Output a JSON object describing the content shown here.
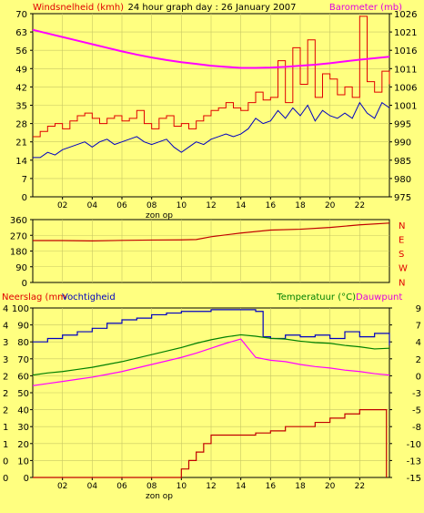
{
  "header": {
    "left_label": "Windsnelheid (kmh)",
    "center_title": "24 hour graph day : 26 January 2007",
    "right_label": "Barometer (mb)"
  },
  "colors": {
    "background": "#ffff80",
    "frame": "#000000",
    "grid": "#c8c864",
    "wind": "#e00000",
    "wind_avg": "#0000c0",
    "baro": "#ff00ff",
    "direction": "#c00000",
    "humidity": "#0000c0",
    "temperature": "#008000",
    "dewpoint": "#ff00ff",
    "rain": "#c00000",
    "label_red": "#e00000",
    "label_magenta": "#e000e0",
    "label_green": "#008000"
  },
  "chart_data": [
    {
      "type": "line",
      "title": "24 hour graph day : 26 January 2007",
      "xlabel": "zon op",
      "x_ticks": [
        "02",
        "04",
        "06",
        "08",
        "10",
        "12",
        "14",
        "16",
        "18",
        "20",
        "22"
      ],
      "xlim": [
        0,
        24
      ],
      "left_axis": {
        "label": "Windsnelheid (kmh)",
        "ticks": [
          "0",
          "7",
          "14",
          "21",
          "28",
          "35",
          "42",
          "49",
          "56",
          "63",
          "70"
        ],
        "ylim": [
          0,
          70
        ]
      },
      "right_axis": {
        "label": "Barometer (mb)",
        "ticks": [
          "975",
          "980",
          "985",
          "990",
          "995",
          "1001",
          "1006",
          "1011",
          "1016",
          "1021",
          "1026"
        ],
        "ylim": [
          975,
          1026
        ]
      },
      "series": [
        {
          "key": "gust",
          "axis": "left",
          "style": "step",
          "color": "#e00000",
          "points": [
            [
              0.0,
              23
            ],
            [
              0.5,
              25
            ],
            [
              1.0,
              27
            ],
            [
              1.5,
              28
            ],
            [
              2.0,
              26
            ],
            [
              2.5,
              29
            ],
            [
              3.0,
              31
            ],
            [
              3.5,
              32
            ],
            [
              4.0,
              30
            ],
            [
              4.5,
              28
            ],
            [
              5.0,
              30
            ],
            [
              5.5,
              31
            ],
            [
              6.0,
              29
            ],
            [
              6.5,
              30
            ],
            [
              7.0,
              33
            ],
            [
              7.5,
              28
            ],
            [
              8.0,
              26
            ],
            [
              8.5,
              30
            ],
            [
              9.0,
              31
            ],
            [
              9.5,
              27
            ],
            [
              10.0,
              28
            ],
            [
              10.5,
              26
            ],
            [
              11.0,
              29
            ],
            [
              11.5,
              31
            ],
            [
              12.0,
              33
            ],
            [
              12.5,
              34
            ],
            [
              13.0,
              36
            ],
            [
              13.5,
              34
            ],
            [
              14.0,
              33
            ],
            [
              14.5,
              36
            ],
            [
              15.0,
              40
            ],
            [
              15.5,
              37
            ],
            [
              16.0,
              38
            ],
            [
              16.5,
              52
            ],
            [
              17.0,
              36
            ],
            [
              17.5,
              57
            ],
            [
              18.0,
              43
            ],
            [
              18.5,
              60
            ],
            [
              19.0,
              38
            ],
            [
              19.5,
              47
            ],
            [
              20.0,
              45
            ],
            [
              20.5,
              39
            ],
            [
              21.0,
              42
            ],
            [
              21.5,
              38
            ],
            [
              22.0,
              69
            ],
            [
              22.5,
              44
            ],
            [
              23.0,
              40
            ],
            [
              23.5,
              48
            ],
            [
              24.0,
              43
            ]
          ]
        },
        {
          "key": "wind_avg",
          "axis": "left",
          "style": "line",
          "color": "#0000c0",
          "points": [
            [
              0.0,
              15
            ],
            [
              0.5,
              15
            ],
            [
              1.0,
              17
            ],
            [
              1.5,
              16
            ],
            [
              2.0,
              18
            ],
            [
              2.5,
              19
            ],
            [
              3.0,
              20
            ],
            [
              3.5,
              21
            ],
            [
              4.0,
              19
            ],
            [
              4.5,
              21
            ],
            [
              5.0,
              22
            ],
            [
              5.5,
              20
            ],
            [
              6.0,
              21
            ],
            [
              6.5,
              22
            ],
            [
              7.0,
              23
            ],
            [
              7.5,
              21
            ],
            [
              8.0,
              20
            ],
            [
              8.5,
              21
            ],
            [
              9.0,
              22
            ],
            [
              9.5,
              19
            ],
            [
              10.0,
              17
            ],
            [
              10.5,
              19
            ],
            [
              11.0,
              21
            ],
            [
              11.5,
              20
            ],
            [
              12.0,
              22
            ],
            [
              12.5,
              23
            ],
            [
              13.0,
              24
            ],
            [
              13.5,
              23
            ],
            [
              14.0,
              24
            ],
            [
              14.5,
              26
            ],
            [
              15.0,
              30
            ],
            [
              15.5,
              28
            ],
            [
              16.0,
              29
            ],
            [
              16.5,
              33
            ],
            [
              17.0,
              30
            ],
            [
              17.5,
              34
            ],
            [
              18.0,
              31
            ],
            [
              18.5,
              35
            ],
            [
              19.0,
              29
            ],
            [
              19.5,
              33
            ],
            [
              20.0,
              31
            ],
            [
              20.5,
              30
            ],
            [
              21.0,
              32
            ],
            [
              21.5,
              30
            ],
            [
              22.0,
              36
            ],
            [
              22.5,
              32
            ],
            [
              23.0,
              30
            ],
            [
              23.5,
              36
            ],
            [
              24.0,
              34
            ]
          ]
        },
        {
          "key": "barometer",
          "axis": "right",
          "style": "line",
          "color": "#ff00ff",
          "points": [
            [
              0.0,
              1021.5
            ],
            [
              1,
              1020.5
            ],
            [
              2,
              1019.5
            ],
            [
              3,
              1018.5
            ],
            [
              4,
              1017.5
            ],
            [
              5,
              1016.5
            ],
            [
              6,
              1015.5
            ],
            [
              7,
              1014.6
            ],
            [
              8,
              1013.8
            ],
            [
              9,
              1013.1
            ],
            [
              10,
              1012.5
            ],
            [
              11,
              1012.0
            ],
            [
              12,
              1011.5
            ],
            [
              13,
              1011.2
            ],
            [
              14,
              1010.9
            ],
            [
              15,
              1010.9
            ],
            [
              16,
              1011.0
            ],
            [
              17,
              1011.2
            ],
            [
              18,
              1011.5
            ],
            [
              19,
              1011.8
            ],
            [
              20,
              1012.2
            ],
            [
              21,
              1012.7
            ],
            [
              22,
              1013.2
            ],
            [
              23,
              1013.6
            ],
            [
              24,
              1014.0
            ]
          ]
        }
      ]
    },
    {
      "type": "line",
      "title": "",
      "x_ticks": [],
      "left_axis": {
        "label": "",
        "ticks": [
          "0",
          "90",
          "180",
          "270",
          "360"
        ],
        "ylim": [
          0,
          360
        ]
      },
      "right_axis": {
        "label": "",
        "ticks": [
          "N",
          "W",
          "S",
          "E",
          "N"
        ]
      },
      "series": [
        {
          "key": "direction",
          "axis": "left",
          "style": "line",
          "color": "#c00000",
          "points": [
            [
              0,
              240
            ],
            [
              2,
              240
            ],
            [
              4,
              238
            ],
            [
              6,
              241
            ],
            [
              8,
              243
            ],
            [
              10,
              244
            ],
            [
              11,
              246
            ],
            [
              12,
              262
            ],
            [
              14,
              283
            ],
            [
              16,
              300
            ],
            [
              18,
              305
            ],
            [
              20,
              315
            ],
            [
              22,
              330
            ],
            [
              24,
              340
            ]
          ]
        }
      ]
    },
    {
      "type": "line",
      "title": "",
      "xlabel": "zon op",
      "x_ticks": [
        "02",
        "04",
        "06",
        "08",
        "10",
        "12",
        "14",
        "16",
        "18",
        "20",
        "22"
      ],
      "xlim": [
        0,
        24
      ],
      "left_axis": {
        "label": "Neerslag (mm",
        "ticks": [
          "0",
          "0",
          "1",
          "1",
          "2",
          "2",
          "2",
          "3",
          "3",
          "4",
          "4"
        ],
        "ylim": [
          0,
          4
        ]
      },
      "left_axis2": {
        "label": "Vochtigheid",
        "ticks": [
          "0",
          "10",
          "20",
          "30",
          "40",
          "50",
          "60",
          "70",
          "80",
          "90",
          "100"
        ],
        "ylim": [
          0,
          100
        ]
      },
      "right_axis": {
        "label": "Temperatuur (°C)",
        "label2": "Dauwpunt",
        "ticks": [
          "-15",
          "-13",
          "-10",
          "-8",
          "-5",
          "-3",
          "0",
          "2",
          "4",
          "7",
          "9"
        ],
        "ylim": [
          -15,
          9
        ]
      },
      "series": [
        {
          "key": "humidity",
          "axis": "left2",
          "style": "step",
          "color": "#0000c0",
          "points": [
            [
              0,
              80
            ],
            [
              1,
              82
            ],
            [
              2,
              84
            ],
            [
              3,
              86
            ],
            [
              4,
              88
            ],
            [
              5,
              91
            ],
            [
              6,
              93
            ],
            [
              7,
              94
            ],
            [
              8,
              96
            ],
            [
              9,
              97
            ],
            [
              10,
              98
            ],
            [
              11,
              98
            ],
            [
              12,
              99
            ],
            [
              13,
              99
            ],
            [
              14,
              99
            ],
            [
              15,
              98
            ],
            [
              15.5,
              83
            ],
            [
              16,
              82
            ],
            [
              17,
              84
            ],
            [
              18,
              83
            ],
            [
              19,
              84
            ],
            [
              20,
              82
            ],
            [
              21,
              86
            ],
            [
              22,
              83
            ],
            [
              23,
              85
            ],
            [
              24,
              78
            ]
          ]
        },
        {
          "key": "temperature",
          "axis": "right",
          "style": "line",
          "color": "#008000",
          "points": [
            [
              0,
              -0.5
            ],
            [
              1,
              -0.2
            ],
            [
              2,
              0.0
            ],
            [
              3,
              0.3
            ],
            [
              4,
              0.6
            ],
            [
              5,
              1.0
            ],
            [
              6,
              1.4
            ],
            [
              7,
              1.9
            ],
            [
              8,
              2.4
            ],
            [
              9,
              2.9
            ],
            [
              10,
              3.4
            ],
            [
              11,
              4.0
            ],
            [
              12,
              4.5
            ],
            [
              13,
              4.9
            ],
            [
              14,
              5.2
            ],
            [
              15,
              5.0
            ],
            [
              16,
              4.7
            ],
            [
              17,
              4.6
            ],
            [
              18,
              4.3
            ],
            [
              19,
              4.1
            ],
            [
              20,
              4.0
            ],
            [
              21,
              3.7
            ],
            [
              22,
              3.5
            ],
            [
              23,
              3.2
            ],
            [
              24,
              3.3
            ]
          ]
        },
        {
          "key": "dewpoint",
          "axis": "right",
          "style": "line",
          "color": "#ff00ff",
          "points": [
            [
              0,
              -2.0
            ],
            [
              1,
              -1.7
            ],
            [
              2,
              -1.4
            ],
            [
              3,
              -1.1
            ],
            [
              4,
              -0.8
            ],
            [
              5,
              -0.4
            ],
            [
              6,
              0.0
            ],
            [
              7,
              0.5
            ],
            [
              8,
              1.0
            ],
            [
              9,
              1.5
            ],
            [
              10,
              2.0
            ],
            [
              11,
              2.6
            ],
            [
              12,
              3.3
            ],
            [
              13,
              4.0
            ],
            [
              14,
              4.6
            ],
            [
              15,
              2.0
            ],
            [
              16,
              1.6
            ],
            [
              17,
              1.4
            ],
            [
              18,
              1.0
            ],
            [
              19,
              0.7
            ],
            [
              20,
              0.5
            ],
            [
              21,
              0.2
            ],
            [
              22,
              0.0
            ],
            [
              23,
              -0.3
            ],
            [
              24,
              -0.5
            ]
          ]
        },
        {
          "key": "rain",
          "axis": "left",
          "style": "step",
          "color": "#c00000",
          "points": [
            [
              0,
              0
            ],
            [
              9.5,
              0
            ],
            [
              10,
              0.2
            ],
            [
              10.5,
              0.4
            ],
            [
              11,
              0.6
            ],
            [
              11.5,
              0.8
            ],
            [
              12,
              1.0
            ],
            [
              14,
              1.0
            ],
            [
              15,
              1.05
            ],
            [
              16,
              1.1
            ],
            [
              17,
              1.2
            ],
            [
              18,
              1.2
            ],
            [
              19,
              1.3
            ],
            [
              20,
              1.4
            ],
            [
              21,
              1.5
            ],
            [
              22,
              1.6
            ],
            [
              23,
              1.6
            ],
            [
              23.7,
              1.6
            ],
            [
              23.8,
              0
            ]
          ]
        }
      ]
    }
  ]
}
